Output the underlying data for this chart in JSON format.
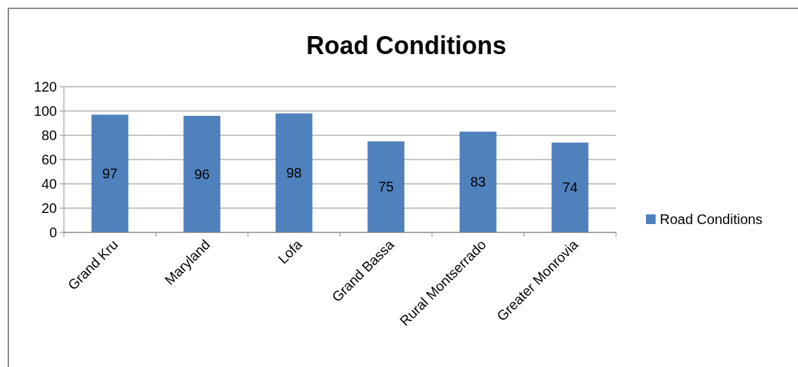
{
  "chart_data": {
    "type": "bar",
    "title": "Road Conditions",
    "categories": [
      "Grand Kru",
      "Maryland",
      "Lofa",
      "Grand Bassa",
      "Rural Montserrado",
      "Greater Monrovia"
    ],
    "series": [
      {
        "name": "Road Conditions",
        "color": "#4f81bd",
        "values": [
          97,
          96,
          98,
          75,
          83,
          74
        ]
      }
    ],
    "ylim": [
      0,
      120
    ],
    "yticks": [
      0,
      20,
      40,
      60,
      80,
      100,
      120
    ],
    "grid": "y",
    "legend": "right",
    "data_labels": true
  }
}
